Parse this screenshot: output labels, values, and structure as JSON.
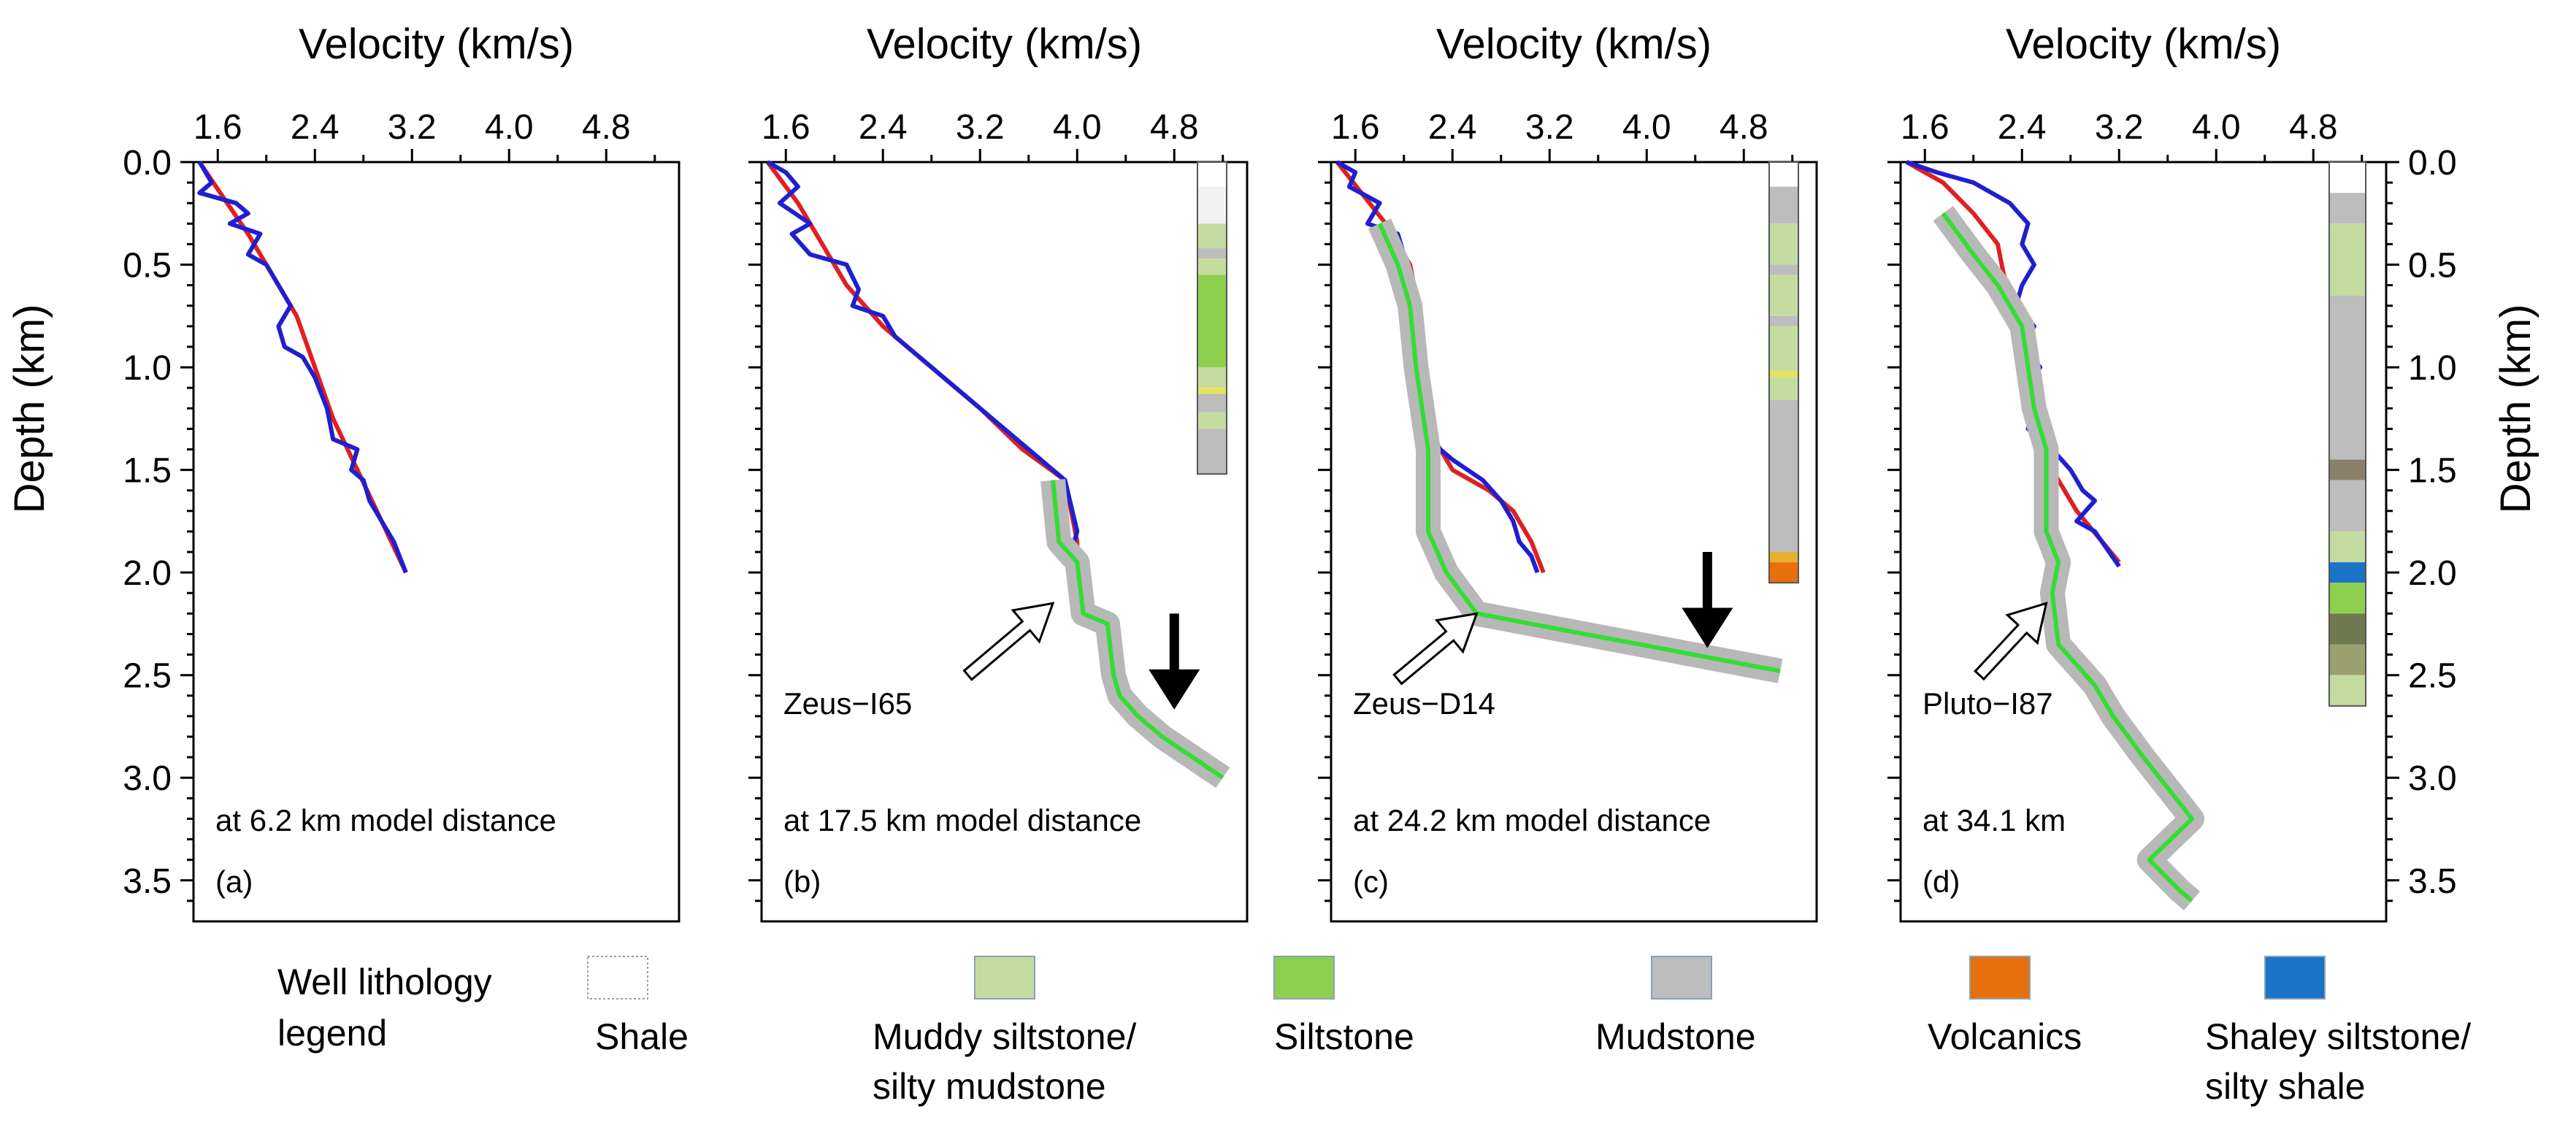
{
  "figure": {
    "x_title": "Velocity (km/s)",
    "y_title_left": "Depth (km)",
    "y_title_right": "Depth (km)",
    "x_ticks": [
      "1.6",
      "2.4",
      "3.2",
      "4.0",
      "4.8"
    ],
    "y_ticks": [
      "0.0",
      "0.5",
      "1.0",
      "1.5",
      "2.0",
      "2.5",
      "3.0",
      "3.5"
    ]
  },
  "colors": {
    "red": "#e02020",
    "blue": "#1f1fd0",
    "green": "#33dd33",
    "grey_band": "#b8b8b8"
  },
  "chart_data": [
    {
      "type": "line",
      "panel": "(a)",
      "caption": "at 6.2 km model distance",
      "xlim": [
        1.4,
        5.4
      ],
      "ylim": [
        0,
        3.7
      ],
      "xlabel": "Velocity (km/s)",
      "ylabel": "Depth (km)",
      "well": "",
      "series": [
        {
          "name": "red",
          "color": "#e02020",
          "points": [
            [
              1.45,
              0
            ],
            [
              1.62,
              0.15
            ],
            [
              1.85,
              0.35
            ],
            [
              2.05,
              0.55
            ],
            [
              2.25,
              0.75
            ],
            [
              2.4,
              1.0
            ],
            [
              2.55,
              1.25
            ],
            [
              2.75,
              1.5
            ],
            [
              2.95,
              1.75
            ],
            [
              3.15,
              2.0
            ]
          ]
        },
        {
          "name": "blue",
          "color": "#1f1fd0",
          "points": [
            [
              1.45,
              0
            ],
            [
              1.55,
              0.1
            ],
            [
              1.45,
              0.15
            ],
            [
              1.75,
              0.2
            ],
            [
              1.85,
              0.25
            ],
            [
              1.7,
              0.3
            ],
            [
              1.95,
              0.35
            ],
            [
              1.85,
              0.45
            ],
            [
              2.0,
              0.5
            ],
            [
              2.1,
              0.6
            ],
            [
              2.2,
              0.7
            ],
            [
              2.1,
              0.8
            ],
            [
              2.15,
              0.9
            ],
            [
              2.3,
              0.95
            ],
            [
              2.4,
              1.05
            ],
            [
              2.5,
              1.2
            ],
            [
              2.55,
              1.35
            ],
            [
              2.75,
              1.4
            ],
            [
              2.7,
              1.5
            ],
            [
              2.8,
              1.55
            ],
            [
              2.85,
              1.65
            ],
            [
              2.95,
              1.75
            ],
            [
              3.05,
              1.85
            ],
            [
              3.15,
              2.0
            ]
          ]
        }
      ]
    },
    {
      "type": "line",
      "panel": "(b)",
      "caption": "at 17.5 km model distance",
      "xlim": [
        1.4,
        5.4
      ],
      "ylim": [
        0,
        3.7
      ],
      "well": "Zeus−I65",
      "series": [
        {
          "name": "red",
          "color": "#e02020",
          "points": [
            [
              1.45,
              0
            ],
            [
              1.7,
              0.2
            ],
            [
              1.9,
              0.4
            ],
            [
              2.1,
              0.6
            ],
            [
              2.4,
              0.8
            ],
            [
              2.8,
              1.0
            ],
            [
              3.2,
              1.2
            ],
            [
              3.55,
              1.4
            ],
            [
              3.9,
              1.55
            ],
            [
              4.0,
              1.85
            ],
            [
              4.0,
              2.0
            ]
          ]
        },
        {
          "name": "blue",
          "color": "#1f1fd0",
          "points": [
            [
              1.45,
              0
            ],
            [
              1.6,
              0.05
            ],
            [
              1.7,
              0.12
            ],
            [
              1.55,
              0.2
            ],
            [
              1.8,
              0.3
            ],
            [
              1.65,
              0.35
            ],
            [
              1.8,
              0.45
            ],
            [
              2.1,
              0.5
            ],
            [
              2.2,
              0.62
            ],
            [
              2.15,
              0.7
            ],
            [
              2.4,
              0.75
            ],
            [
              2.5,
              0.85
            ],
            [
              2.8,
              1.0
            ],
            [
              3.1,
              1.15
            ],
            [
              3.4,
              1.3
            ],
            [
              3.7,
              1.45
            ],
            [
              3.9,
              1.55
            ],
            [
              4.0,
              1.8
            ],
            [
              3.95,
              1.9
            ],
            [
              4.0,
              2.0
            ]
          ]
        },
        {
          "name": "green",
          "color": "#33dd33",
          "band": true,
          "points": [
            [
              3.8,
              1.55
            ],
            [
              3.85,
              1.85
            ],
            [
              4.0,
              1.95
            ],
            [
              4.05,
              2.2
            ],
            [
              4.25,
              2.25
            ],
            [
              4.3,
              2.5
            ],
            [
              4.35,
              2.6
            ],
            [
              4.5,
              2.7
            ],
            [
              4.7,
              2.8
            ],
            [
              5.2,
              3.0
            ]
          ]
        }
      ],
      "arrows": [
        {
          "kind": "hollow",
          "tip": [
            3.8,
            2.15
          ],
          "tail": [
            3.1,
            2.5
          ]
        },
        {
          "kind": "solid",
          "tip": [
            4.8,
            2.65
          ],
          "tail": [
            4.8,
            2.2
          ]
        }
      ]
    },
    {
      "type": "line",
      "panel": "(c)",
      "caption": "at 24.2 km model distance",
      "xlim": [
        1.4,
        5.4
      ],
      "ylim": [
        0,
        3.7
      ],
      "well": "Zeus−D14",
      "series": [
        {
          "name": "red",
          "color": "#e02020",
          "points": [
            [
              1.45,
              0
            ],
            [
              1.65,
              0.15
            ],
            [
              1.85,
              0.3
            ],
            [
              2.05,
              0.5
            ],
            [
              2.15,
              0.8
            ],
            [
              2.2,
              1.1
            ],
            [
              2.2,
              1.3
            ],
            [
              2.4,
              1.5
            ],
            [
              2.7,
              1.6
            ],
            [
              2.9,
              1.7
            ],
            [
              3.05,
              1.85
            ],
            [
              3.15,
              2.0
            ]
          ]
        },
        {
          "name": "blue",
          "color": "#1f1fd0",
          "points": [
            [
              1.45,
              0
            ],
            [
              1.6,
              0.05
            ],
            [
              1.55,
              0.12
            ],
            [
              1.8,
              0.2
            ],
            [
              1.7,
              0.3
            ],
            [
              1.95,
              0.35
            ],
            [
              2.0,
              0.45
            ],
            [
              1.95,
              0.55
            ],
            [
              2.05,
              0.62
            ],
            [
              2.1,
              0.75
            ],
            [
              2.05,
              0.85
            ],
            [
              2.15,
              0.95
            ],
            [
              2.05,
              1.05
            ],
            [
              2.15,
              1.15
            ],
            [
              2.1,
              1.25
            ],
            [
              2.2,
              1.35
            ],
            [
              2.4,
              1.45
            ],
            [
              2.65,
              1.55
            ],
            [
              2.8,
              1.65
            ],
            [
              2.9,
              1.75
            ],
            [
              2.95,
              1.85
            ],
            [
              3.05,
              1.92
            ],
            [
              3.1,
              2.0
            ]
          ]
        },
        {
          "name": "green",
          "color": "#33dd33",
          "band": true,
          "points": [
            [
              1.8,
              0.3
            ],
            [
              1.95,
              0.5
            ],
            [
              2.05,
              0.7
            ],
            [
              2.1,
              1.0
            ],
            [
              2.15,
              1.2
            ],
            [
              2.2,
              1.4
            ],
            [
              2.2,
              1.8
            ],
            [
              2.35,
              2.0
            ],
            [
              2.6,
              2.2
            ],
            [
              5.1,
              2.48
            ]
          ]
        }
      ],
      "arrows": [
        {
          "kind": "hollow",
          "tip": [
            2.6,
            2.2
          ],
          "tail": [
            1.95,
            2.52
          ]
        },
        {
          "kind": "solid",
          "tip": [
            4.5,
            2.35
          ],
          "tail": [
            4.5,
            1.9
          ]
        }
      ]
    },
    {
      "type": "line",
      "panel": "(d)",
      "caption": "at 34.1 km",
      "xlim": [
        1.4,
        5.4
      ],
      "ylim": [
        0,
        3.7
      ],
      "well": "Pluto−I87",
      "series": [
        {
          "name": "red",
          "color": "#e02020",
          "points": [
            [
              1.45,
              0
            ],
            [
              1.75,
              0.1
            ],
            [
              2.0,
              0.25
            ],
            [
              2.2,
              0.4
            ],
            [
              2.25,
              0.55
            ],
            [
              2.35,
              0.7
            ],
            [
              2.4,
              0.9
            ],
            [
              2.45,
              1.1
            ],
            [
              2.5,
              1.3
            ],
            [
              2.65,
              1.5
            ],
            [
              2.85,
              1.7
            ],
            [
              3.2,
              1.95
            ]
          ]
        },
        {
          "name": "blue",
          "color": "#1f1fd0",
          "points": [
            [
              1.45,
              0
            ],
            [
              1.7,
              0.05
            ],
            [
              2.0,
              0.1
            ],
            [
              2.3,
              0.2
            ],
            [
              2.45,
              0.3
            ],
            [
              2.4,
              0.4
            ],
            [
              2.5,
              0.5
            ],
            [
              2.4,
              0.6
            ],
            [
              2.35,
              0.7
            ],
            [
              2.5,
              0.8
            ],
            [
              2.4,
              0.9
            ],
            [
              2.55,
              1.0
            ],
            [
              2.4,
              1.1
            ],
            [
              2.5,
              1.2
            ],
            [
              2.45,
              1.3
            ],
            [
              2.65,
              1.4
            ],
            [
              2.8,
              1.5
            ],
            [
              2.9,
              1.6
            ],
            [
              3.0,
              1.65
            ],
            [
              2.85,
              1.75
            ],
            [
              3.0,
              1.8
            ],
            [
              3.2,
              1.97
            ]
          ]
        },
        {
          "name": "green",
          "color": "#33dd33",
          "band": true,
          "points": [
            [
              1.75,
              0.25
            ],
            [
              2.0,
              0.45
            ],
            [
              2.2,
              0.6
            ],
            [
              2.4,
              0.8
            ],
            [
              2.45,
              1.0
            ],
            [
              2.5,
              1.2
            ],
            [
              2.6,
              1.4
            ],
            [
              2.6,
              1.8
            ],
            [
              2.7,
              1.95
            ],
            [
              2.65,
              2.1
            ],
            [
              2.7,
              2.35
            ],
            [
              3.0,
              2.55
            ],
            [
              3.15,
              2.7
            ],
            [
              3.4,
              2.9
            ],
            [
              3.6,
              3.05
            ],
            [
              3.8,
              3.2
            ],
            [
              3.45,
              3.4
            ],
            [
              3.7,
              3.55
            ],
            [
              3.8,
              3.6
            ]
          ]
        }
      ],
      "arrows": [
        {
          "kind": "hollow",
          "tip": [
            2.6,
            2.15
          ],
          "tail": [
            2.05,
            2.5
          ]
        }
      ]
    }
  ],
  "legend": {
    "title_line1": "Well lithology",
    "title_line2": "legend",
    "items": [
      {
        "label1": "Shale",
        "label2": "",
        "color": "#ffffff"
      },
      {
        "label1": "Muddy siltstone/",
        "label2": "silty mudstone",
        "color": "#c5dca0"
      },
      {
        "label1": "Siltstone",
        "label2": "",
        "color": "#8ed04e"
      },
      {
        "label1": "Mudstone",
        "label2": "",
        "color": "#bdbdbd"
      },
      {
        "label1": "Volcanics",
        "label2": "",
        "color": "#e8700c"
      },
      {
        "label1": "Shaley siltstone/",
        "label2": "silty shale",
        "color": "#1a73c8"
      }
    ]
  }
}
